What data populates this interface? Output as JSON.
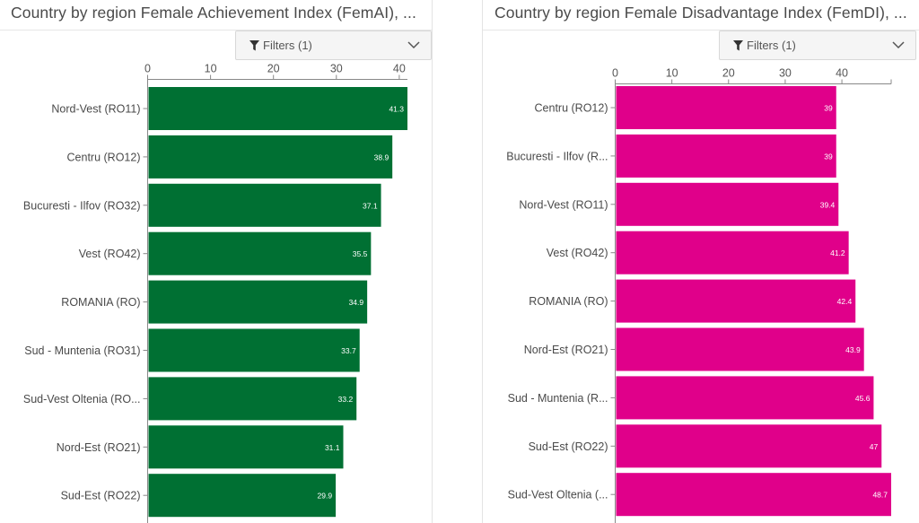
{
  "panels": [
    {
      "id": "left",
      "title": "Country by region Female Achievement Index (FemAI), ...",
      "filter_label": "Filters (1)",
      "chart_data": {
        "type": "bar",
        "orientation": "horizontal",
        "categories": [
          "Nord-Vest (RO11)",
          "Centru (RO12)",
          "Bucuresti - Ilfov (RO32)",
          "Vest (RO42)",
          "ROMANIA (RO)",
          "Sud - Muntenia (RO31)",
          "Sud-Vest Oltenia (RO...",
          "Nord-Est (RO21)",
          "Sud-Est (RO22)"
        ],
        "values": [
          41.3,
          38.9,
          37.1,
          35.5,
          34.9,
          33.7,
          33.2,
          31.1,
          29.9
        ],
        "xticks": [
          0,
          10,
          20,
          30,
          40
        ],
        "xlim": [
          0,
          41.3
        ],
        "bar_color": "#007033",
        "label_color": "#ffffff",
        "axis_position": "top",
        "grid": false,
        "legend": "none"
      }
    },
    {
      "id": "right",
      "title": "Country by region Female Disadvantage Index (FemDI), ...",
      "filter_label": "Filters (1)",
      "chart_data": {
        "type": "bar",
        "orientation": "horizontal",
        "categories": [
          "Centru (RO12)",
          "Bucuresti - Ilfov (R...",
          "Nord-Vest (RO11)",
          "Vest (RO42)",
          "ROMANIA (RO)",
          "Nord-Est (RO21)",
          "Sud - Muntenia (R...",
          "Sud-Est (RO22)",
          "Sud-Vest Oltenia (..."
        ],
        "values": [
          39,
          39,
          39.4,
          41.2,
          42.4,
          43.9,
          45.6,
          47,
          48.7
        ],
        "xticks": [
          0,
          10,
          20,
          30,
          40
        ],
        "xlim": [
          0,
          48.7
        ],
        "bar_color": "#e0008a",
        "label_color": "#ffffff",
        "axis_position": "top",
        "grid": false,
        "legend": "none"
      }
    }
  ]
}
